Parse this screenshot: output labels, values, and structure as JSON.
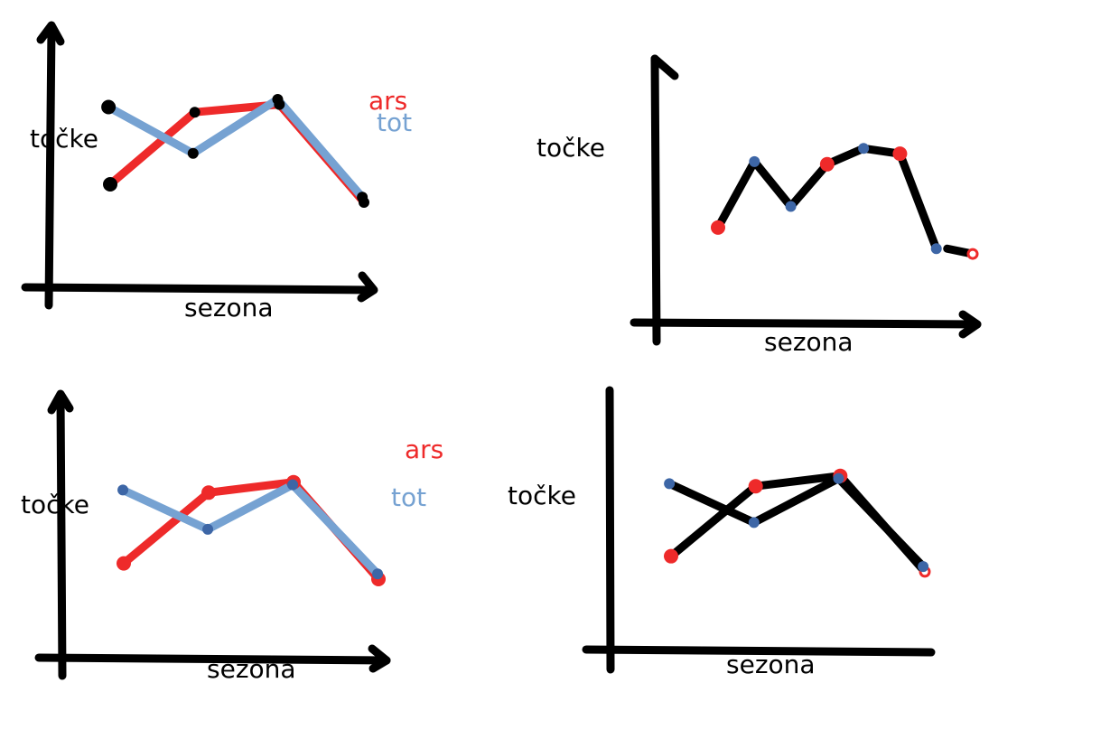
{
  "colors": {
    "axis": "#000000",
    "ars": "#ee2a2a",
    "tot": "#76a2d2",
    "tot_marker": "#3d66a6",
    "merged_line": "#000000"
  },
  "chart_data": [
    {
      "type": "line",
      "xlabel": "sezona",
      "ylabel": "točke",
      "legend_position": "top-right",
      "series": [
        {
          "name": "ars",
          "color": "#ee2a2a",
          "x": [
            1,
            2,
            3,
            4
          ],
          "y": [
            4.0,
            6.8,
            7.1,
            3.3
          ]
        },
        {
          "name": "tot",
          "color": "#76a2d2",
          "x": [
            1,
            2,
            3,
            4
          ],
          "y": [
            7.0,
            5.2,
            7.3,
            3.5
          ]
        }
      ]
    },
    {
      "type": "line",
      "xlabel": "sezona",
      "ylabel": "točke",
      "merged": true,
      "points": [
        {
          "x": 1,
          "y": 3.6,
          "team": "ars"
        },
        {
          "x": 2,
          "y": 6.1,
          "team": "tot"
        },
        {
          "x": 3,
          "y": 4.4,
          "team": "tot"
        },
        {
          "x": 4,
          "y": 6.0,
          "team": "ars"
        },
        {
          "x": 5,
          "y": 6.6,
          "team": "tot"
        },
        {
          "x": 6,
          "y": 6.4,
          "team": "ars"
        },
        {
          "x": 7,
          "y": 2.8,
          "team": "tot"
        },
        {
          "x": 8,
          "y": 2.6,
          "team": "ars"
        }
      ]
    },
    {
      "type": "line",
      "xlabel": "sezona",
      "ylabel": "točke",
      "legend_position": "top-right",
      "series": [
        {
          "name": "ars",
          "color": "#ee2a2a",
          "x": [
            1,
            2,
            3,
            4
          ],
          "y": [
            3.6,
            6.3,
            6.7,
            3.0
          ]
        },
        {
          "name": "tot",
          "color": "#76a2d2",
          "x": [
            1,
            2,
            3,
            4
          ],
          "y": [
            6.4,
            4.9,
            6.6,
            3.2
          ]
        }
      ]
    },
    {
      "type": "line",
      "xlabel": "sezona",
      "ylabel": "točke",
      "color": "#000000",
      "series": [
        {
          "x": [
            1,
            2,
            3,
            4
          ],
          "y": [
            3.6,
            6.3,
            6.7,
            3.0
          ],
          "marker_color": "#ee2a2a"
        },
        {
          "x": [
            1,
            2,
            3,
            4
          ],
          "y": [
            6.4,
            4.9,
            6.6,
            3.2
          ],
          "marker_color": "#3d66a6"
        }
      ]
    }
  ]
}
